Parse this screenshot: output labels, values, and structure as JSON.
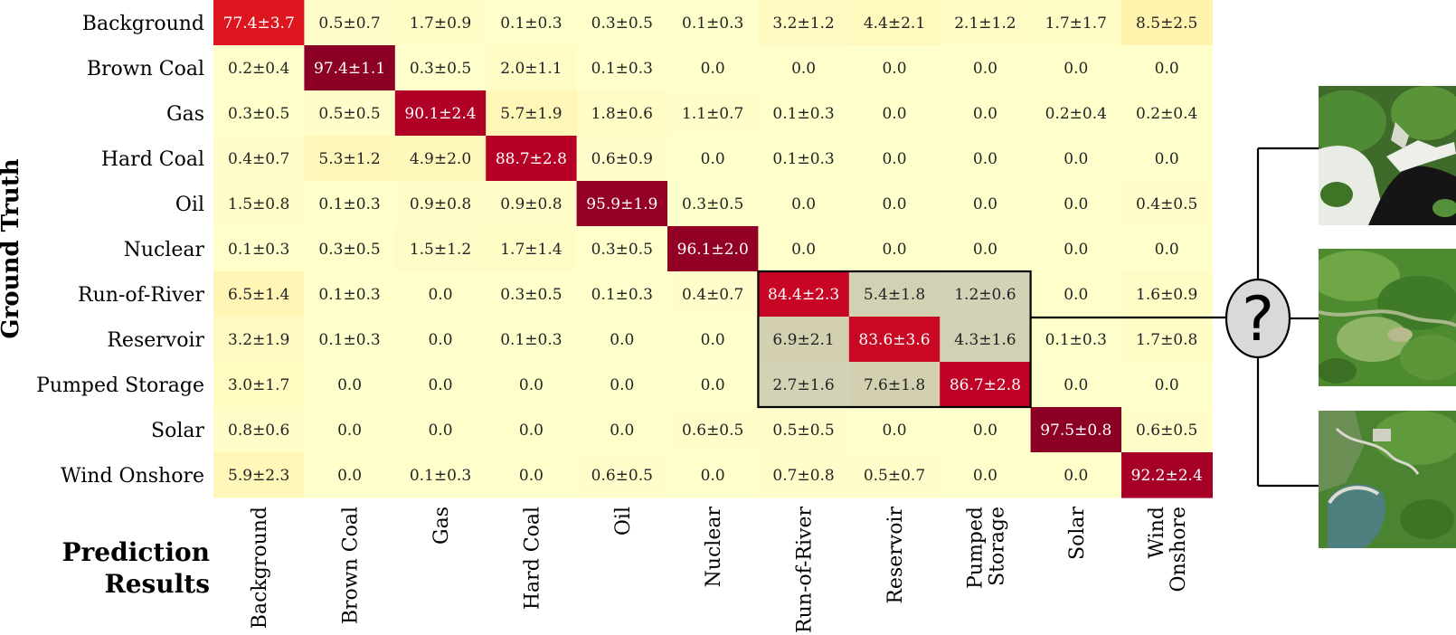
{
  "chart_data": {
    "type": "heatmap",
    "ylabel": "Ground Truth",
    "xlabel_lines": [
      "Prediction",
      "Results"
    ],
    "row_labels": [
      "Background",
      "Brown Coal",
      "Gas",
      "Hard Coal",
      "Oil",
      "Nuclear",
      "Run-of-River",
      "Reservoir",
      "Pumped Storage",
      "Solar",
      "Wind Onshore"
    ],
    "col_labels": [
      [
        "Background"
      ],
      [
        "Brown Coal"
      ],
      [
        "Gas"
      ],
      [
        "Hard Coal"
      ],
      [
        "Oil"
      ],
      [
        "Nuclear"
      ],
      [
        "Run-of-River"
      ],
      [
        "Reservoir"
      ],
      [
        "Pumped",
        "Storage"
      ],
      [
        "Solar"
      ],
      [
        "Wind",
        "Onshore"
      ]
    ],
    "values": [
      [
        77.4,
        0.5,
        1.7,
        0.1,
        0.3,
        0.1,
        3.2,
        4.4,
        2.1,
        1.7,
        8.5
      ],
      [
        0.2,
        97.4,
        0.3,
        2.0,
        0.1,
        0.0,
        0.0,
        0.0,
        0.0,
        0.0,
        0.0
      ],
      [
        0.3,
        0.5,
        90.1,
        5.7,
        1.8,
        1.1,
        0.1,
        0.0,
        0.0,
        0.2,
        0.2
      ],
      [
        0.4,
        5.3,
        4.9,
        88.7,
        0.6,
        0.0,
        0.1,
        0.0,
        0.0,
        0.0,
        0.0
      ],
      [
        1.5,
        0.1,
        0.9,
        0.9,
        95.9,
        0.3,
        0.0,
        0.0,
        0.0,
        0.0,
        0.4
      ],
      [
        0.1,
        0.3,
        1.5,
        1.7,
        0.3,
        96.1,
        0.0,
        0.0,
        0.0,
        0.0,
        0.0
      ],
      [
        6.5,
        0.1,
        0.0,
        0.3,
        0.1,
        0.4,
        84.4,
        5.4,
        1.2,
        0.0,
        1.6
      ],
      [
        3.2,
        0.1,
        0.0,
        0.1,
        0.0,
        0.0,
        6.9,
        83.6,
        4.3,
        0.1,
        1.7
      ],
      [
        3.0,
        0.0,
        0.0,
        0.0,
        0.0,
        0.0,
        2.7,
        7.6,
        86.7,
        0.0,
        0.0
      ],
      [
        0.8,
        0.0,
        0.0,
        0.0,
        0.0,
        0.6,
        0.5,
        0.0,
        0.0,
        97.5,
        0.6
      ],
      [
        5.9,
        0.0,
        0.1,
        0.0,
        0.6,
        0.0,
        0.7,
        0.5,
        0.0,
        0.0,
        92.2
      ]
    ],
    "cells": [
      [
        "77.4±3.7",
        "0.5±0.7",
        "1.7±0.9",
        "0.1±0.3",
        "0.3±0.5",
        "0.1±0.3",
        "3.2±1.2",
        "4.4±2.1",
        "2.1±1.2",
        "1.7±1.7",
        "8.5±2.5"
      ],
      [
        "0.2±0.4",
        "97.4±1.1",
        "0.3±0.5",
        "2.0±1.1",
        "0.1±0.3",
        "0.0",
        "0.0",
        "0.0",
        "0.0",
        "0.0",
        "0.0"
      ],
      [
        "0.3±0.5",
        "0.5±0.5",
        "90.1±2.4",
        "5.7±1.9",
        "1.8±0.6",
        "1.1±0.7",
        "0.1±0.3",
        "0.0",
        "0.0",
        "0.2±0.4",
        "0.2±0.4"
      ],
      [
        "0.4±0.7",
        "5.3±1.2",
        "4.9±2.0",
        "88.7±2.8",
        "0.6±0.9",
        "0.0",
        "0.1±0.3",
        "0.0",
        "0.0",
        "0.0",
        "0.0"
      ],
      [
        "1.5±0.8",
        "0.1±0.3",
        "0.9±0.8",
        "0.9±0.8",
        "95.9±1.9",
        "0.3±0.5",
        "0.0",
        "0.0",
        "0.0",
        "0.0",
        "0.4±0.5"
      ],
      [
        "0.1±0.3",
        "0.3±0.5",
        "1.5±1.2",
        "1.7±1.4",
        "0.3±0.5",
        "96.1±2.0",
        "0.0",
        "0.0",
        "0.0",
        "0.0",
        "0.0"
      ],
      [
        "6.5±1.4",
        "0.1±0.3",
        "0.0",
        "0.3±0.5",
        "0.1±0.3",
        "0.4±0.7",
        "84.4±2.3",
        "5.4±1.8",
        "1.2±0.6",
        "0.0",
        "1.6±0.9"
      ],
      [
        "3.2±1.9",
        "0.1±0.3",
        "0.0",
        "0.1±0.3",
        "0.0",
        "0.0",
        "6.9±2.1",
        "83.6±3.6",
        "4.3±1.6",
        "0.1±0.3",
        "1.7±0.8"
      ],
      [
        "3.0±1.7",
        "0.0",
        "0.0",
        "0.0",
        "0.0",
        "0.0",
        "2.7±1.6",
        "7.6±1.8",
        "86.7±2.8",
        "0.0",
        "0.0"
      ],
      [
        "0.8±0.6",
        "0.0",
        "0.0",
        "0.0",
        "0.0",
        "0.6±0.5",
        "0.5±0.5",
        "0.0",
        "0.0",
        "97.5±0.8",
        "0.6±0.5"
      ],
      [
        "5.9±2.3",
        "0.0",
        "0.1±0.3",
        "0.0",
        "0.6±0.5",
        "0.0",
        "0.7±0.8",
        "0.5±0.7",
        "0.0",
        "0.0",
        "92.2±2.4"
      ]
    ],
    "highlight_block": {
      "rows": [
        6,
        8
      ],
      "cols": [
        6,
        8
      ]
    },
    "colormap": [
      "#ffffcc",
      "#ffeda0",
      "#fed976",
      "#feb24c",
      "#fd8d3c",
      "#fc4e2a",
      "#e31a1c",
      "#bd0026",
      "#800026"
    ],
    "highlight_tint": "#a9a996",
    "range": [
      0,
      100
    ]
  },
  "annotation": {
    "symbol": "?",
    "node_fill": "#d9d9d9",
    "thumbnails": [
      "satellite-image-dam-reservoir",
      "satellite-image-forested-valley",
      "satellite-image-lake-and-facility"
    ]
  }
}
